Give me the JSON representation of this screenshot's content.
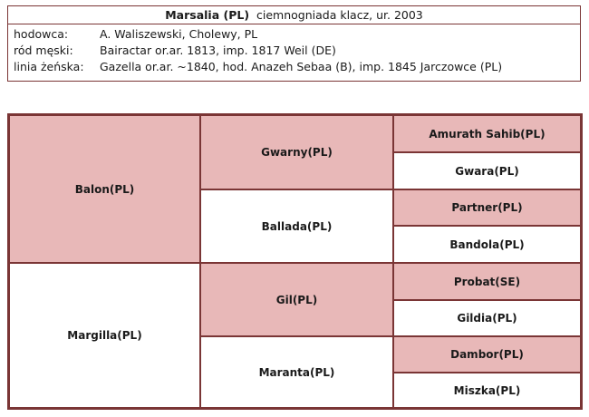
{
  "header": {
    "name": "Marsalia (PL)",
    "desc": "ciemnogniada klacz, ur. 2003"
  },
  "info": [
    {
      "label": "hodowca:",
      "value": "A. Waliszewski, Cholewy, PL"
    },
    {
      "label": "ród męski:",
      "value": "Bairactar or.ar. 1813,  imp. 1817  Weil (DE)"
    },
    {
      "label": "linia żeńska:",
      "value": "Gazella or.ar. ~1840,  hod. Anazeh Sebaa (B), imp. 1845 Jarczowce (PL)"
    }
  ],
  "pedigree": {
    "sire": "Balon(PL)",
    "dam": "Margilla(PL)",
    "sire_sire": "Gwarny(PL)",
    "sire_dam": "Ballada(PL)",
    "dam_sire": "Gil(PL)",
    "dam_dam": "Maranta(PL)",
    "g3": [
      "Amurath Sahib(PL)",
      "Gwara(PL)",
      "Partner(PL)",
      "Bandola(PL)",
      "Probat(SE)",
      "Gildia(PL)",
      "Dambor(PL)",
      "Miszka(PL)"
    ]
  },
  "colors": {
    "border": "#7a3535",
    "male": "#e8b8b8",
    "female": "#ffffff"
  }
}
